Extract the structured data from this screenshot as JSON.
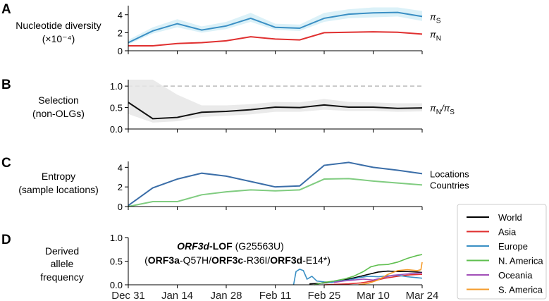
{
  "chart_data": [
    {
      "panel": "A",
      "type": "line",
      "ylabel": [
        "Nucleotide diversity",
        "(×10⁻⁴)"
      ],
      "yticks": [
        0,
        2,
        4
      ],
      "ylim": [
        0,
        5
      ],
      "x": [
        0,
        1,
        2,
        3,
        4,
        5,
        6,
        7,
        8,
        9,
        10,
        11,
        12
      ],
      "series": [
        {
          "name": "πS",
          "label_main": "π",
          "label_sub": "S",
          "color": "#3a8fc4",
          "values": [
            0.9,
            2.2,
            3.0,
            2.3,
            2.75,
            3.6,
            2.6,
            2.5,
            3.6,
            4.05,
            4.2,
            4.25,
            3.8
          ],
          "band_lo": [
            0.7,
            1.9,
            2.6,
            2.0,
            2.4,
            3.2,
            2.3,
            2.2,
            3.2,
            3.6,
            3.7,
            3.8,
            3.3
          ],
          "band_hi": [
            1.2,
            2.6,
            3.5,
            2.7,
            3.2,
            4.2,
            3.0,
            2.9,
            4.2,
            4.6,
            4.8,
            4.8,
            4.4
          ]
        },
        {
          "name": "πN",
          "label_main": "π",
          "label_sub": "N",
          "color": "#e03030",
          "values": [
            0.55,
            0.55,
            0.8,
            0.9,
            1.1,
            1.55,
            1.3,
            1.2,
            2.0,
            2.05,
            2.1,
            2.05,
            1.85
          ]
        }
      ]
    },
    {
      "panel": "B",
      "type": "line",
      "ylabel": [
        "Selection",
        "(non-OLGs)"
      ],
      "yticks": [
        "0.0",
        "0.5",
        "1.0"
      ],
      "ylim": [
        0,
        1.15
      ],
      "x": [
        0,
        1,
        2,
        3,
        4,
        5,
        6,
        7,
        8,
        9,
        10,
        11,
        12
      ],
      "reference_line": 1.0,
      "series": [
        {
          "name": "πN/πS",
          "label_main": "π",
          "label_sub": "N",
          "label_mid": "/π",
          "label_sub2": "S",
          "color": "#111111",
          "values": [
            0.62,
            0.24,
            0.27,
            0.39,
            0.41,
            0.45,
            0.51,
            0.5,
            0.56,
            0.51,
            0.51,
            0.48,
            0.49
          ],
          "band_lo": [
            0.35,
            0.15,
            0.18,
            0.28,
            0.31,
            0.34,
            0.4,
            0.4,
            0.45,
            0.42,
            0.42,
            0.4,
            0.41
          ],
          "band_hi": [
            1.15,
            1.15,
            0.8,
            0.55,
            0.55,
            0.58,
            0.63,
            0.62,
            0.7,
            0.63,
            0.62,
            0.6,
            0.6
          ]
        }
      ]
    },
    {
      "panel": "C",
      "type": "line",
      "ylabel": [
        "Entropy",
        "(sample locations)"
      ],
      "yticks": [
        0,
        2,
        4
      ],
      "ylim": [
        0,
        4.6
      ],
      "x": [
        0,
        1,
        2,
        3,
        4,
        5,
        6,
        7,
        8,
        9,
        10,
        11,
        12
      ],
      "series": [
        {
          "name": "Locations",
          "color": "#3b6ea8",
          "values": [
            0.1,
            1.9,
            2.8,
            3.4,
            3.1,
            2.55,
            2.0,
            2.1,
            4.2,
            4.5,
            4.0,
            3.7,
            3.35
          ]
        },
        {
          "name": "Countries",
          "color": "#80cc80",
          "values": [
            0.0,
            0.5,
            0.5,
            1.2,
            1.5,
            1.7,
            1.6,
            1.7,
            2.8,
            2.85,
            2.6,
            2.4,
            2.2
          ]
        }
      ]
    },
    {
      "panel": "D",
      "type": "line",
      "ylabel": [
        "Derived",
        "allele",
        "frequency"
      ],
      "yticks": [
        "0.0",
        "0.5",
        "1.0"
      ],
      "ylim": [
        0,
        1.0
      ],
      "xlabels": [
        "Dec 31",
        "Jan 14",
        "Jan 28",
        "Feb 11",
        "Feb 25",
        "Mar 10",
        "Mar 24"
      ],
      "annotation": {
        "line1_bold_italic": "ORF3d",
        "line1_bold": "-LOF",
        "line1_rest": " (G25563U)",
        "line2": [
          {
            "t": "(",
            "b": false
          },
          {
            "t": "ORF3a",
            "b": true
          },
          {
            "t": "-Q57H/",
            "b": false
          },
          {
            "t": "ORF3c",
            "b": true
          },
          {
            "t": "-R36I/",
            "b": false
          },
          {
            "t": "ORF3d",
            "b": true
          },
          {
            "t": "-E14*)",
            "b": false
          }
        ]
      },
      "series": [
        {
          "name": "World",
          "color": "#000000",
          "x": [
            7.4,
            7.8,
            8.2,
            8.6,
            9.0,
            9.4,
            9.8,
            10.2,
            10.6,
            11.0,
            11.4,
            11.8,
            12.0
          ],
          "values": [
            0.02,
            0.03,
            0.05,
            0.08,
            0.12,
            0.17,
            0.22,
            0.27,
            0.29,
            0.28,
            0.28,
            0.27,
            0.26
          ]
        },
        {
          "name": "Asia",
          "color": "#e03030",
          "x": [
            8.0,
            8.5,
            9.0,
            9.5,
            10.0,
            10.5,
            11.0,
            11.5,
            12.0
          ],
          "values": [
            0.0,
            0.01,
            0.02,
            0.04,
            0.08,
            0.14,
            0.18,
            0.21,
            0.22
          ]
        },
        {
          "name": "Europe",
          "color": "#3a8fc4",
          "x": [
            6.75,
            6.85,
            7.0,
            7.15,
            7.3,
            7.5,
            7.7,
            8.0,
            8.3,
            8.6,
            9.0,
            9.4,
            9.8,
            10.2,
            10.6,
            11.0,
            11.4,
            11.8,
            12.0
          ],
          "values": [
            0.0,
            0.28,
            0.33,
            0.3,
            0.12,
            0.18,
            0.08,
            0.06,
            0.05,
            0.08,
            0.1,
            0.15,
            0.18,
            0.17,
            0.19,
            0.2,
            0.17,
            0.15,
            0.14
          ]
        },
        {
          "name": "N. America",
          "color": "#5fbf4f",
          "x": [
            7.6,
            8.0,
            8.4,
            8.8,
            9.2,
            9.6,
            9.9,
            10.2,
            10.6,
            11.0,
            11.4,
            11.8,
            12.0
          ],
          "values": [
            0.0,
            0.05,
            0.08,
            0.12,
            0.18,
            0.28,
            0.38,
            0.42,
            0.43,
            0.48,
            0.56,
            0.62,
            0.64
          ]
        },
        {
          "name": "Oceania",
          "color": "#a24fb8",
          "x": [
            8.4,
            8.8,
            9.2,
            9.6,
            10.0,
            10.4,
            10.8,
            11.2,
            11.6,
            12.0
          ],
          "values": [
            0.05,
            0.08,
            0.1,
            0.12,
            0.1,
            0.15,
            0.2,
            0.22,
            0.24,
            0.25
          ]
        },
        {
          "name": "S. America",
          "color": "#f59b2a",
          "x": [
            9.4,
            9.8,
            10.2,
            10.6,
            11.0,
            11.4,
            11.8,
            11.95,
            12.0
          ],
          "values": [
            0.0,
            0.03,
            0.1,
            0.22,
            0.3,
            0.32,
            0.3,
            0.32,
            0.48
          ]
        }
      ]
    }
  ],
  "panels": {
    "A": {
      "letter": "A"
    },
    "B": {
      "letter": "B"
    },
    "C": {
      "letter": "C"
    },
    "D": {
      "letter": "D"
    }
  }
}
